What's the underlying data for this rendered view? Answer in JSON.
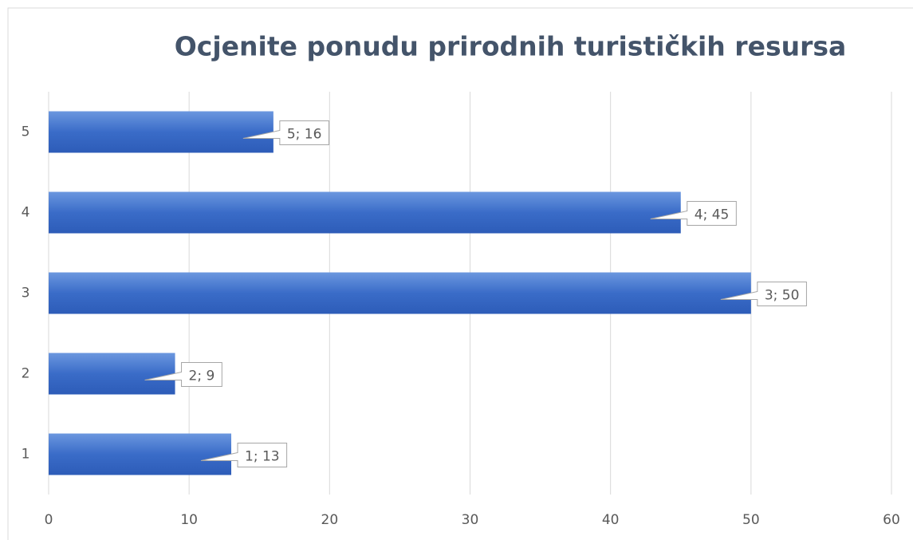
{
  "chart_data": {
    "type": "bar",
    "orientation": "horizontal",
    "title": "Ocjenite ponudu prirodnih turističkih resursa",
    "categories": [
      "1",
      "2",
      "3",
      "4",
      "5"
    ],
    "values": [
      13,
      9,
      50,
      45,
      16
    ],
    "value_labels": [
      "1; 13",
      "2; 9",
      "3; 50",
      "4; 45",
      "5; 16"
    ],
    "color": "#3a6cc8",
    "xlim": [
      0,
      60
    ],
    "xticks": [
      0,
      10,
      20,
      30,
      40,
      50,
      60
    ],
    "grid": true
  }
}
